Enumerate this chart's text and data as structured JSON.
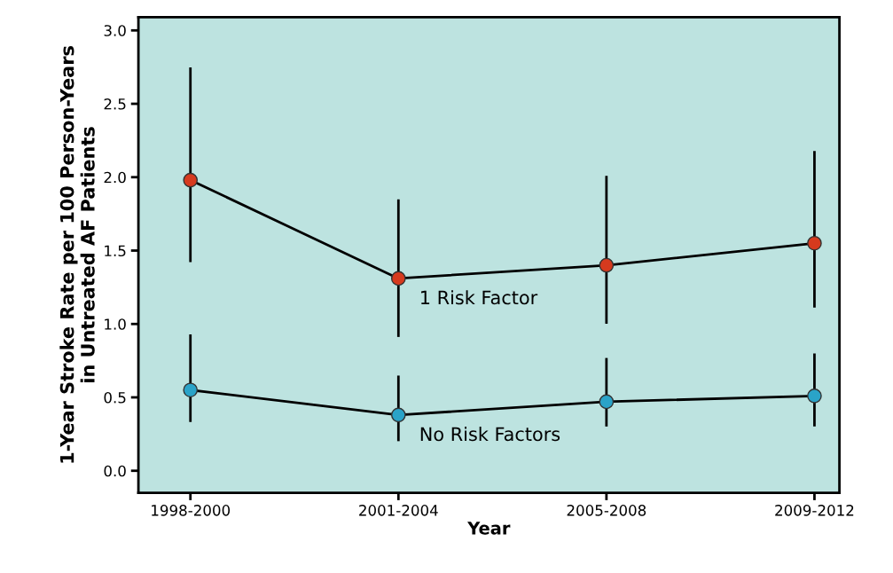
{
  "chart_data": {
    "type": "line",
    "xlabel": "Year",
    "ylabel": "1-Year Stroke Rate per 100 Person-Years\nin Untreated AF Patients",
    "categories": [
      "1998-2000",
      "2001-2004",
      "2005-2008",
      "2009-2012"
    ],
    "series": [
      {
        "name": "1 Risk Factor",
        "color": "#d63a1e",
        "values": [
          1.98,
          1.31,
          1.4,
          1.55
        ],
        "errors": [
          [
            1.43,
            2.74
          ],
          [
            0.92,
            1.84
          ],
          [
            1.01,
            2.0
          ],
          [
            1.12,
            2.17
          ]
        ]
      },
      {
        "name": "No Risk Factors",
        "color": "#2aa3c8",
        "values": [
          0.55,
          0.38,
          0.47,
          0.51
        ],
        "errors": [
          [
            0.34,
            0.92
          ],
          [
            0.21,
            0.64
          ],
          [
            0.31,
            0.76
          ],
          [
            0.31,
            0.79
          ]
        ]
      }
    ],
    "ylim": [
      -0.15,
      3.09
    ],
    "yticks": [
      {
        "value": 0,
        "label": "0.0"
      },
      0.5,
      {
        "value": 1,
        "label": "1.0"
      },
      1.5,
      {
        "value": 2,
        "label": "2.0"
      },
      2.5,
      {
        "value": 3,
        "label": "3.0"
      }
    ],
    "marker": "circle",
    "line_style": "solid",
    "grid": false,
    "legend": false
  }
}
